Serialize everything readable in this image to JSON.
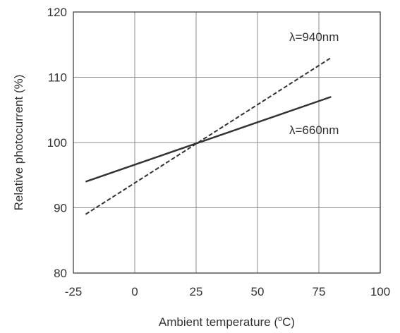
{
  "chart_data": {
    "type": "line",
    "title": "",
    "xlabel": "Ambient temperature (°C)",
    "xlabel_parts": {
      "main": "Ambient temperature  (",
      "sup": "o",
      "rest": "C)"
    },
    "ylabel": "Relative photocurrent  (%)",
    "xlim": [
      -25,
      100
    ],
    "ylim": [
      80,
      120
    ],
    "xticks": [
      -25,
      0,
      25,
      50,
      75,
      100
    ],
    "yticks": [
      80,
      90,
      100,
      110,
      120
    ],
    "grid": true,
    "series": [
      {
        "name": "λ=940nm",
        "style": "dashed",
        "color": "#333333",
        "x": [
          -20,
          80
        ],
        "y": [
          89,
          113
        ]
      },
      {
        "name": "λ=660nm",
        "style": "solid",
        "color": "#333333",
        "x": [
          -20,
          80
        ],
        "y": [
          94,
          107
        ]
      }
    ]
  }
}
